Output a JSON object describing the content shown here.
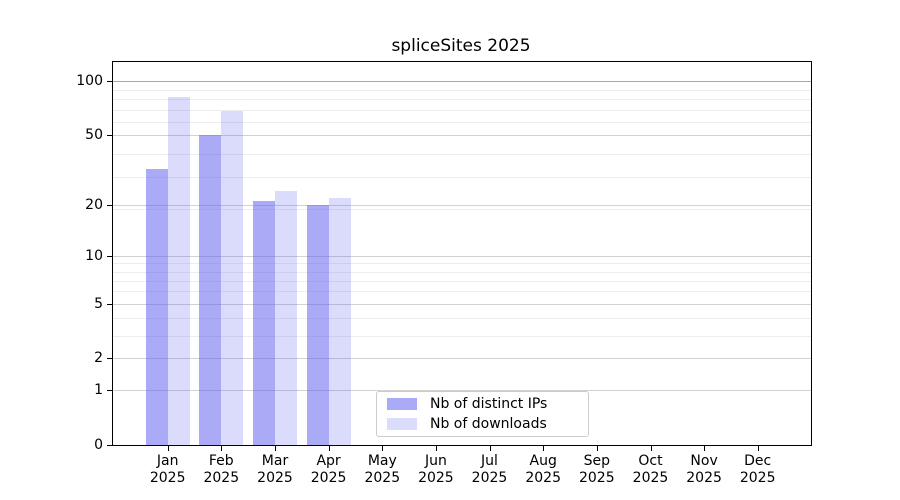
{
  "title": "spliceSites 2025",
  "chart_data": {
    "type": "bar",
    "title": "spliceSites 2025",
    "scale": "log1p",
    "grid": true,
    "months": [
      "Jan",
      "Feb",
      "Mar",
      "Apr",
      "May",
      "Jun",
      "Jul",
      "Aug",
      "Sep",
      "Oct",
      "Nov",
      "Dec"
    ],
    "year": "2025",
    "series": [
      {
        "name": "Nb of distinct IPs",
        "fill": "rgba(86,86,240,0.50)",
        "color_hex": "#aaaaf8",
        "values": [
          32,
          50,
          21,
          20,
          0,
          0,
          0,
          0,
          0,
          0,
          0,
          0
        ]
      },
      {
        "name": "Nb of downloads",
        "fill": "rgba(86,86,240,0.21)",
        "color_hex": "#dbdbfa",
        "values": [
          81,
          68,
          24,
          22,
          0,
          0,
          0,
          0,
          0,
          0,
          0,
          0
        ]
      }
    ],
    "y_ticks": [
      0,
      1,
      2,
      5,
      10,
      20,
      50,
      100
    ],
    "y_axis_top": 127,
    "minor_grid_vplus": [
      4,
      5,
      7,
      8,
      9,
      10,
      20,
      30,
      40,
      60,
      70,
      80,
      90
    ],
    "legend_position": "lower-center"
  },
  "legend": {
    "items": [
      {
        "label": "Nb of distinct IPs"
      },
      {
        "label": "Nb of downloads"
      }
    ]
  }
}
